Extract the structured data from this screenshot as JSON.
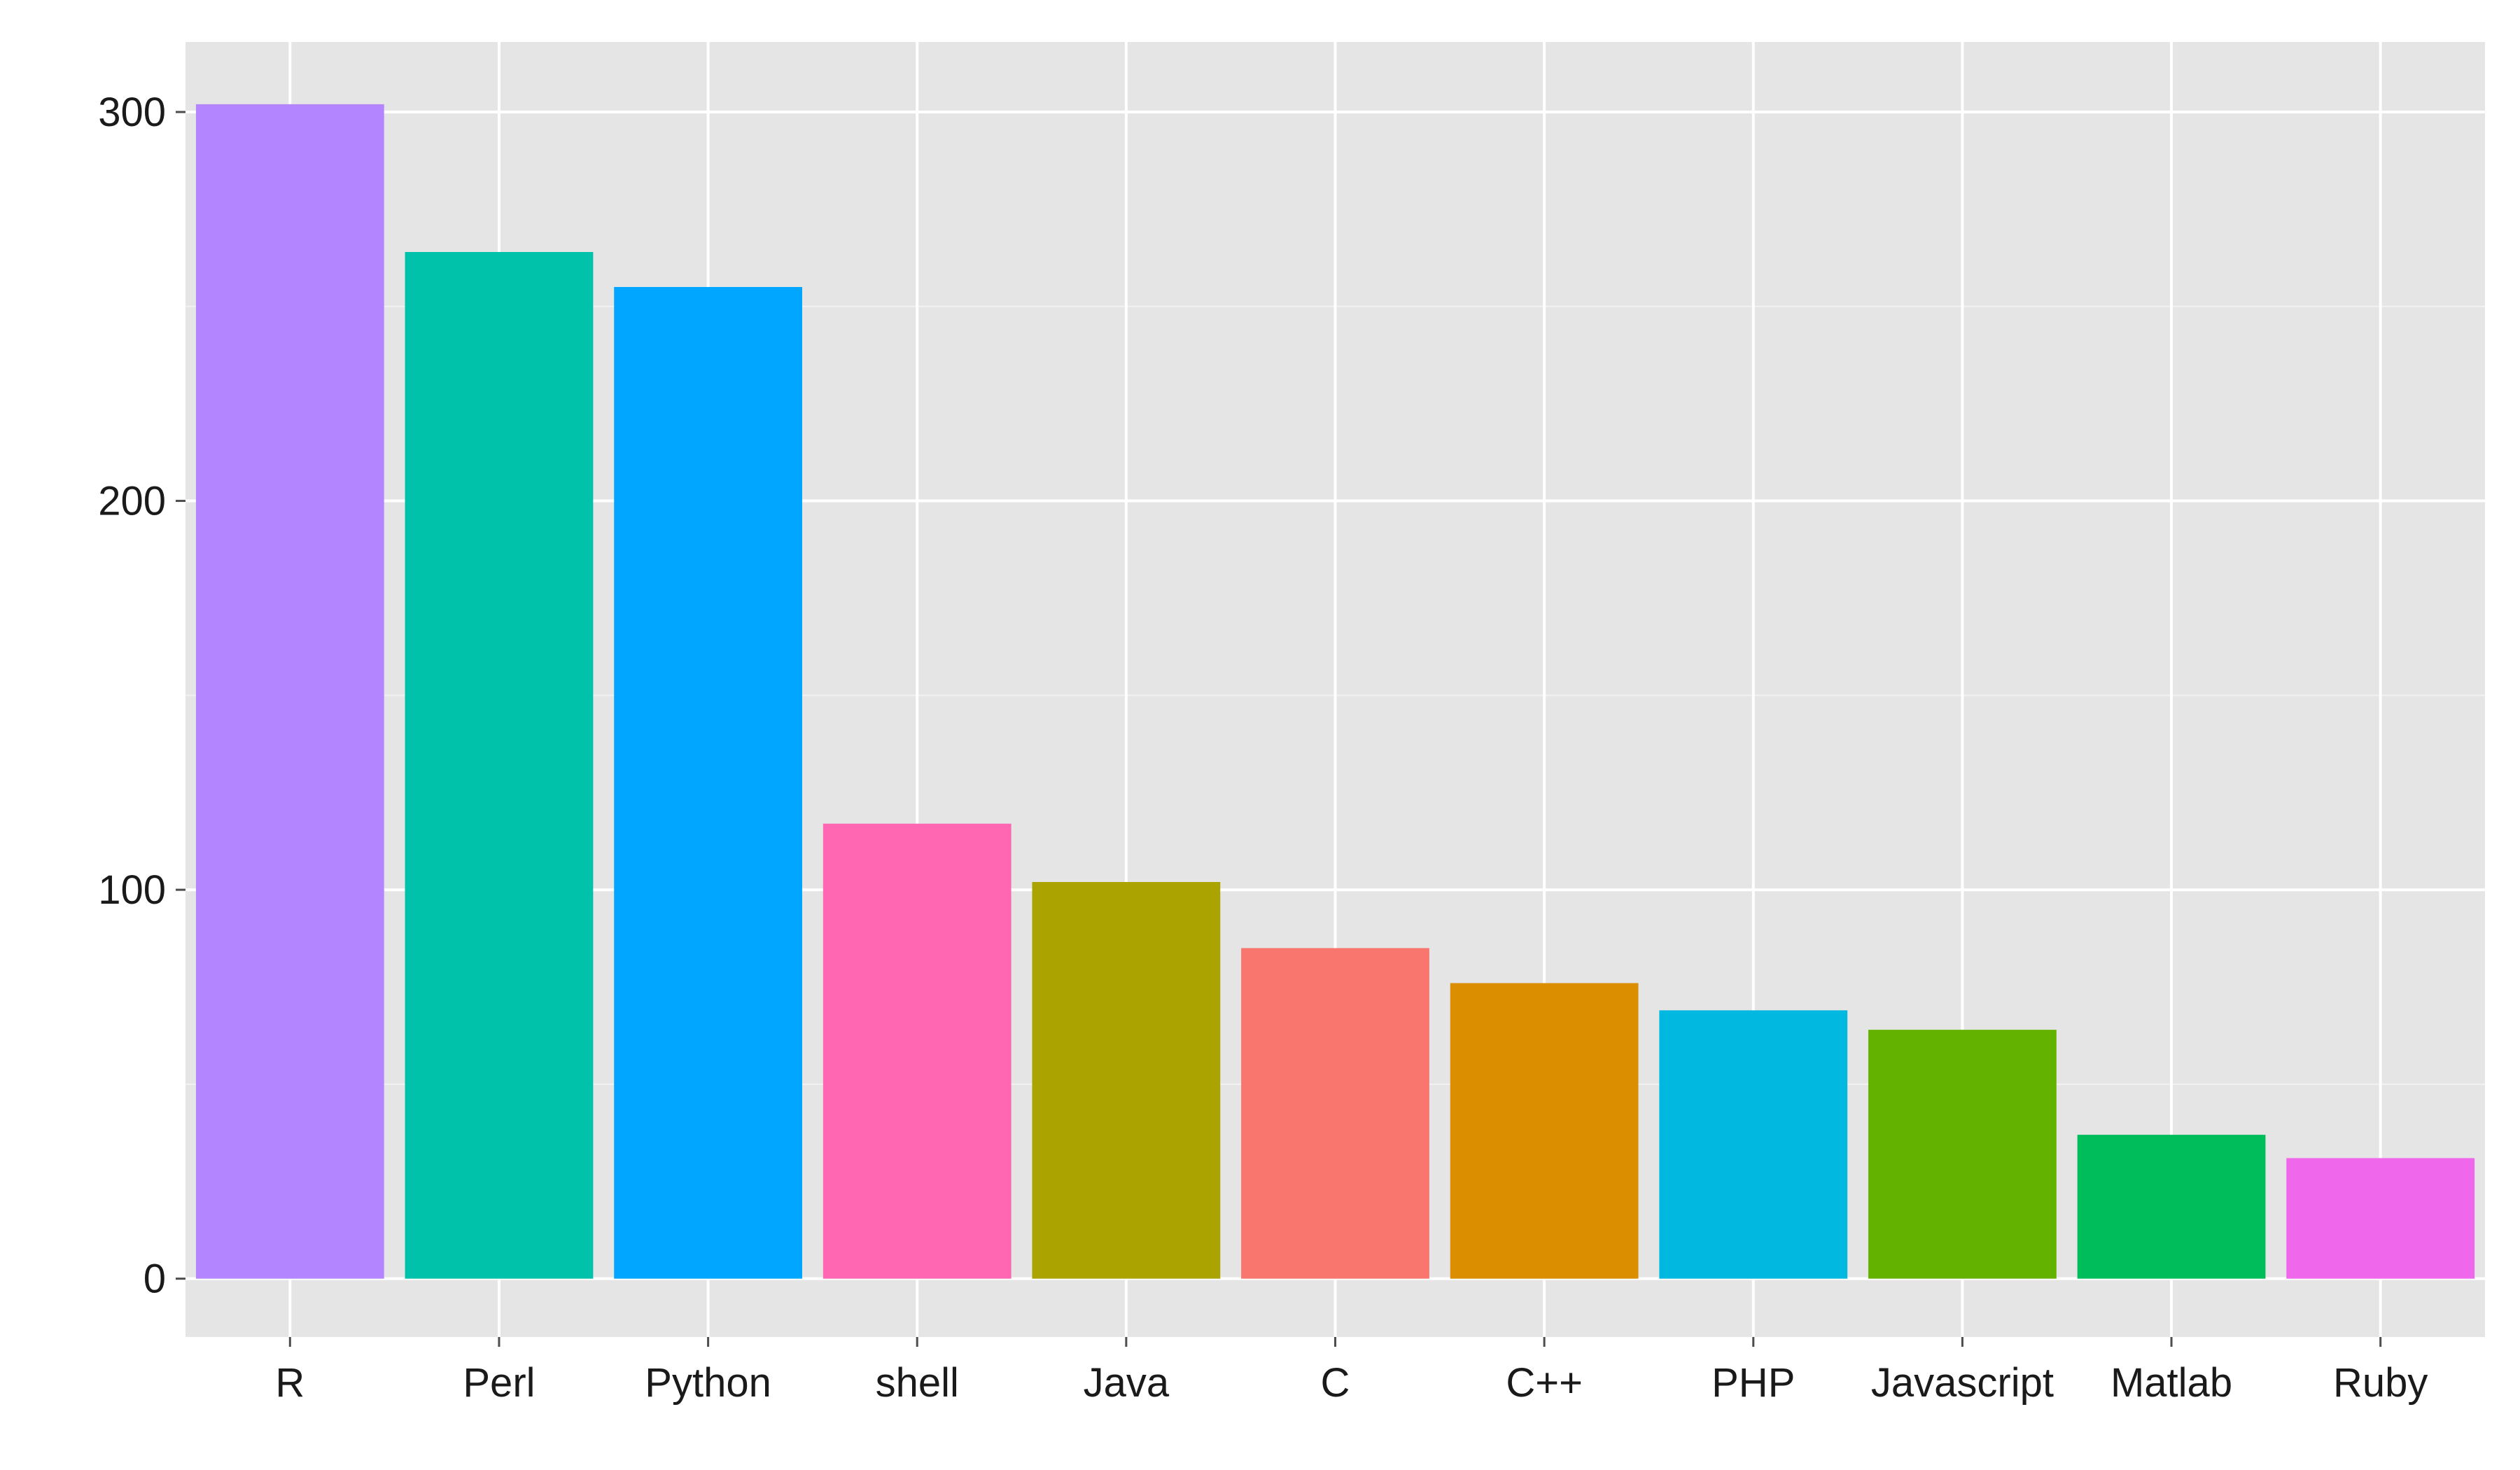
{
  "chart_data": {
    "type": "bar",
    "title": "",
    "xlabel": "",
    "ylabel": "",
    "categories": [
      "R",
      "Perl",
      "Python",
      "shell",
      "Java",
      "C",
      "C++",
      "PHP",
      "Javascript",
      "Matlab",
      "Ruby"
    ],
    "values": [
      302,
      264,
      255,
      117,
      102,
      85,
      76,
      69,
      64,
      37,
      31
    ],
    "colors": [
      "#B385FF",
      "#00C1AA",
      "#00A6FF",
      "#FF67B3",
      "#ABA300",
      "#F8766D",
      "#DB8E00",
      "#00B8E0",
      "#64B200",
      "#00BD5C",
      "#EF67EB"
    ],
    "ylim": [
      -15,
      318
    ],
    "yticks": [
      0,
      100,
      200,
      300
    ],
    "ytick_labels": [
      "0",
      "100",
      "200",
      "300"
    ],
    "grid": true,
    "legend": "none",
    "background": "#E5E5E5",
    "gridline_color": "#FFFFFF"
  }
}
